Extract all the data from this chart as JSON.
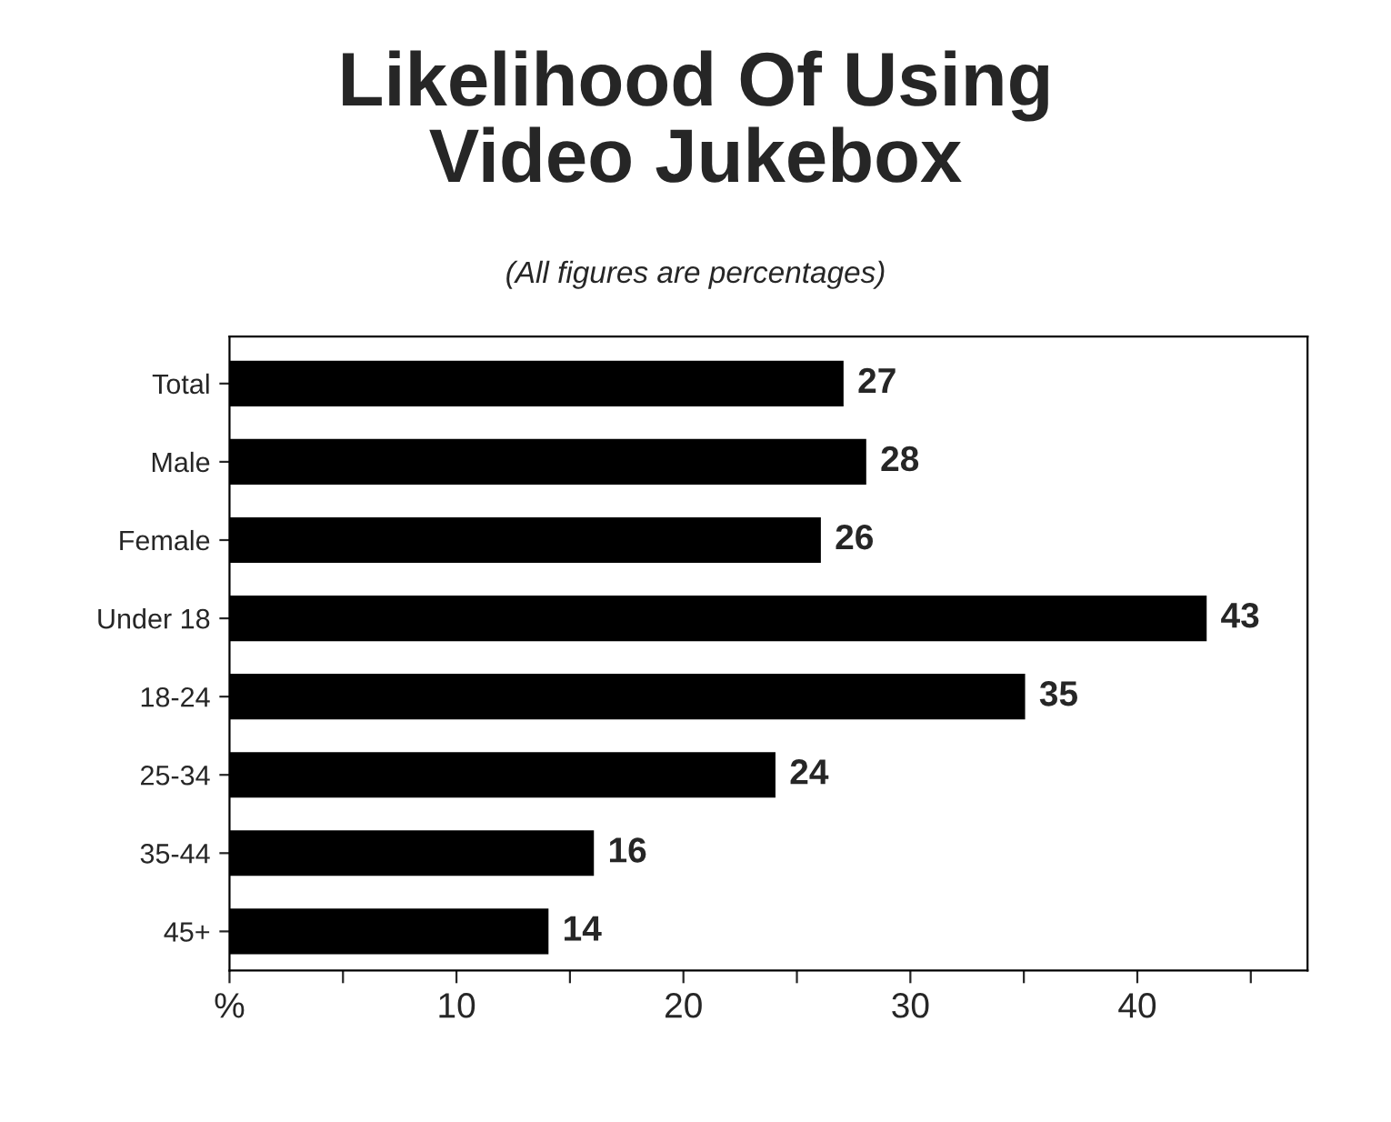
{
  "chart_data": {
    "type": "bar",
    "orientation": "horizontal",
    "title": "Likelihood Of Using\nVideo Jukebox",
    "subtitle": "(All figures are percentages)",
    "categories": [
      "Total",
      "Male",
      "Female",
      "Under 18",
      "18-24",
      "25-34",
      "35-44",
      "45+"
    ],
    "values": [
      27,
      28,
      26,
      43,
      35,
      24,
      16,
      14
    ],
    "color": "#000000",
    "data_labels": true,
    "xlim": [
      0,
      47.5
    ],
    "xticks": [
      {
        "value": 0,
        "label": "%"
      },
      {
        "value": 5,
        "label": null
      },
      10,
      {
        "value": 15,
        "label": null
      },
      20,
      {
        "value": 25,
        "label": null
      },
      30,
      {
        "value": 35,
        "label": null
      },
      40,
      {
        "value": 45,
        "label": null
      }
    ],
    "grid": false
  }
}
